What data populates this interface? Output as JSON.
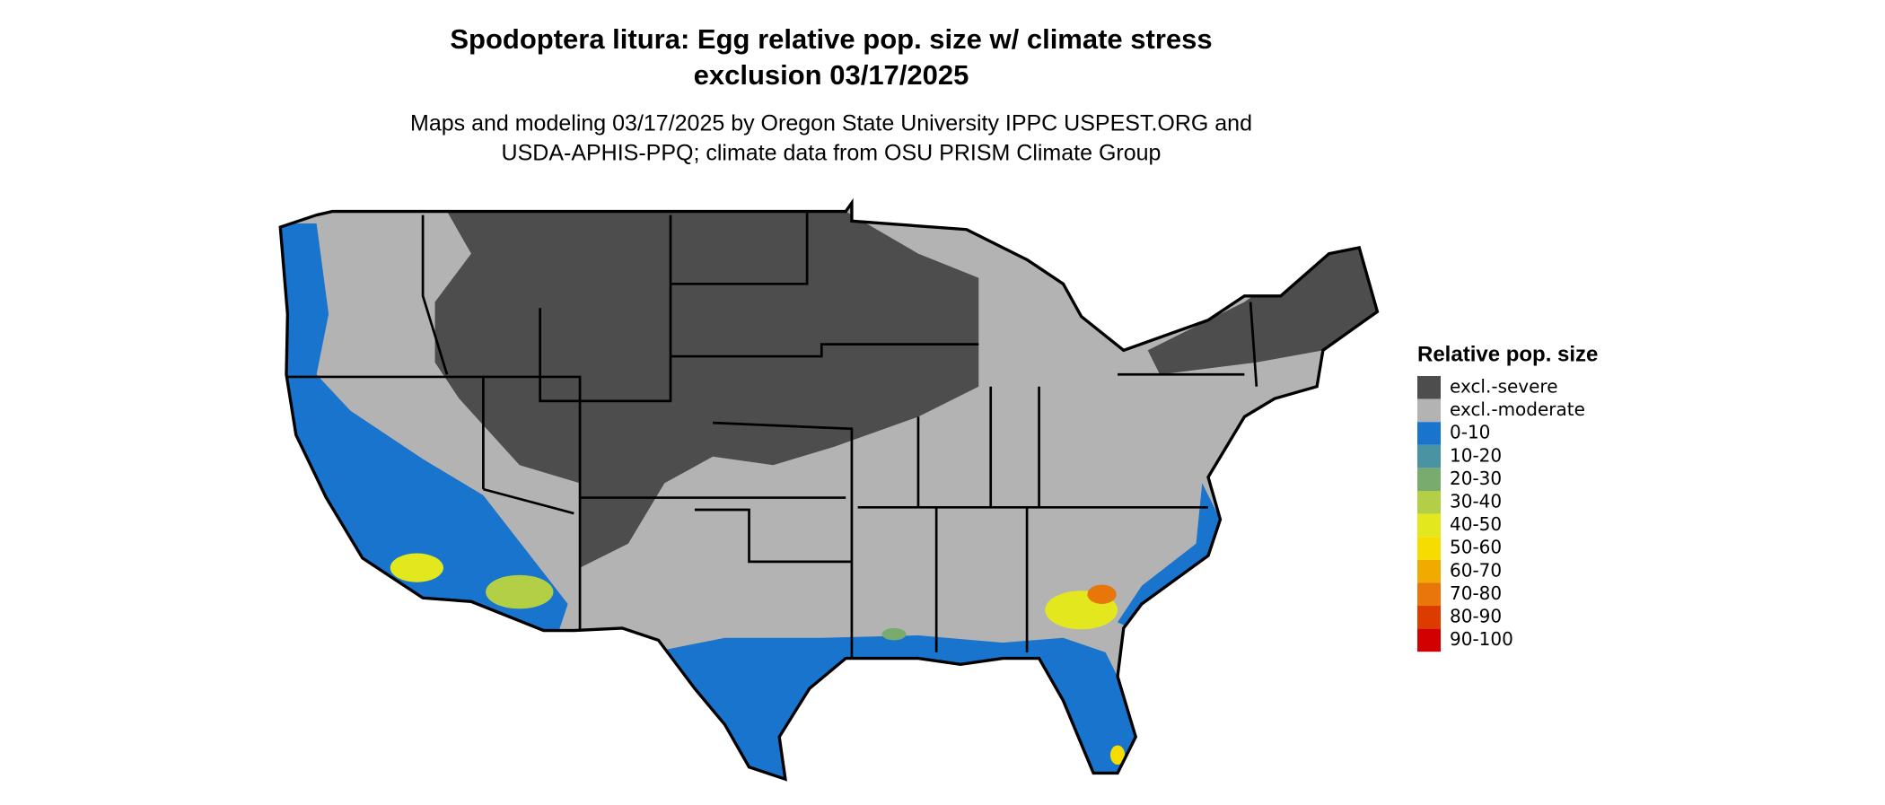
{
  "header": {
    "title_lines": [
      "Spodoptera litura: Egg relative pop. size w/ climate stress",
      "exclusion 03/17/2025"
    ],
    "subtitle_lines": [
      "Maps and modeling 03/17/2025 by Oregon State University IPPC USPEST.ORG and",
      "USDA-APHIS-PPQ; climate data from OSU PRISM Climate Group"
    ]
  },
  "legend": {
    "title": "Relative pop. size",
    "items": [
      {
        "label": "excl.-severe",
        "color": "#4d4d4d"
      },
      {
        "label": "excl.-moderate",
        "color": "#b3b3b3"
      },
      {
        "label": "0-10",
        "color": "#1874cd"
      },
      {
        "label": "10-20",
        "color": "#4a93a3"
      },
      {
        "label": "20-30",
        "color": "#7aab6e"
      },
      {
        "label": "30-40",
        "color": "#b2cf46"
      },
      {
        "label": "40-50",
        "color": "#e3e81e"
      },
      {
        "label": "50-60",
        "color": "#f7dc00"
      },
      {
        "label": "60-70",
        "color": "#f0aa00"
      },
      {
        "label": "70-80",
        "color": "#e8760a"
      },
      {
        "label": "80-90",
        "color": "#dc3c00"
      },
      {
        "label": "90-100",
        "color": "#d20000"
      }
    ]
  }
}
